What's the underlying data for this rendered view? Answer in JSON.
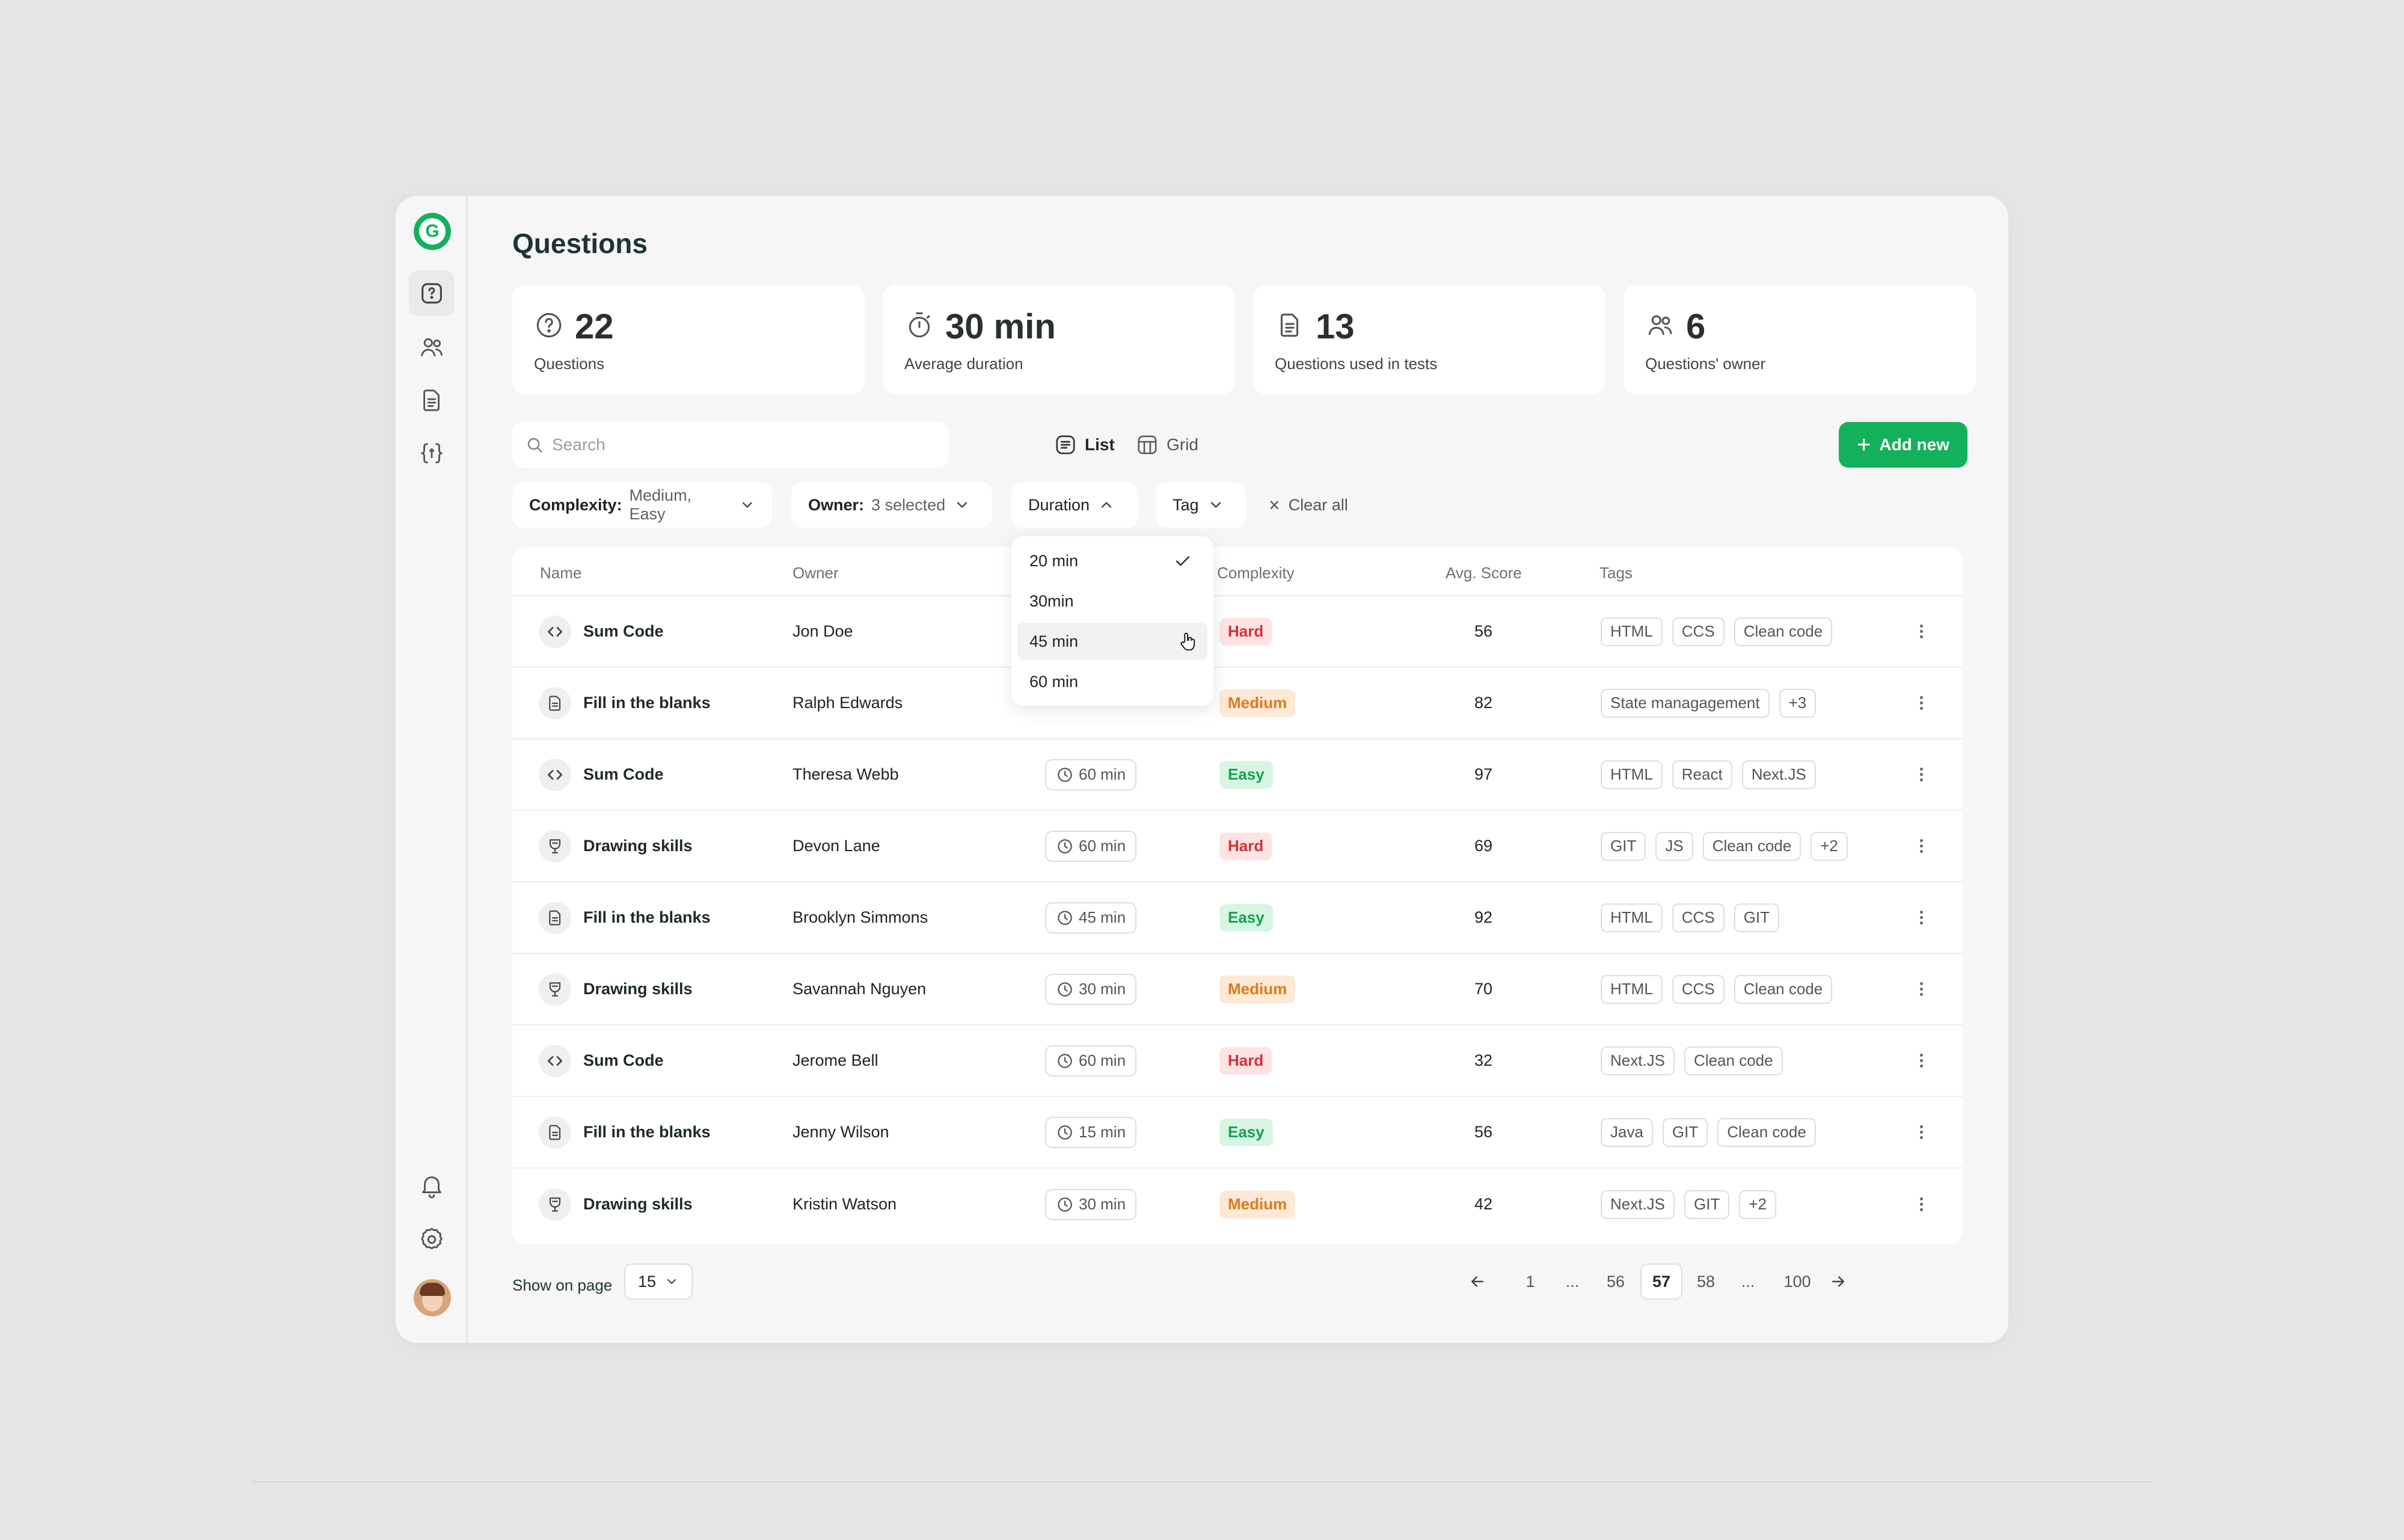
{
  "app": {
    "logo_letter": "G"
  },
  "sidebar": {
    "items": [
      {
        "name": "questions",
        "icon": "question-doc-icon",
        "active": true
      },
      {
        "name": "users",
        "icon": "users-icon",
        "active": false
      },
      {
        "name": "tests",
        "icon": "document-icon",
        "active": false
      },
      {
        "name": "code",
        "icon": "code-braces-icon",
        "active": false
      }
    ],
    "bottom": [
      "bell-icon",
      "gear-icon",
      "avatar"
    ]
  },
  "page": {
    "title": "Questions"
  },
  "stats": [
    {
      "value": "22",
      "label": "Questions",
      "icon": "question-circle-icon"
    },
    {
      "value": "30 min",
      "label": "Average duration",
      "icon": "stopwatch-icon"
    },
    {
      "value": "13",
      "label": "Questions used in tests",
      "icon": "document-icon"
    },
    {
      "value": "6",
      "label": "Questions' owner",
      "icon": "users-icon"
    }
  ],
  "search": {
    "placeholder": "Search",
    "value": ""
  },
  "view": {
    "list_label": "List",
    "grid_label": "Grid",
    "selected": "List"
  },
  "add_button": {
    "label": "Add new"
  },
  "filters": {
    "complexity": {
      "label": "Complexity:",
      "value": "Medium, Easy"
    },
    "owner": {
      "label": "Owner:",
      "value": "3 selected"
    },
    "duration": {
      "label": "Duration"
    },
    "tag": {
      "label": "Tag"
    },
    "clear_all": "Clear all"
  },
  "duration_dropdown": {
    "options": [
      "20 min",
      "30min",
      "45 min",
      "60 min"
    ],
    "selected": "20 min",
    "hovered": "45 min"
  },
  "table": {
    "headers": {
      "name": "Name",
      "owner": "Owner",
      "complexity": "Complexity",
      "score": "Avg. Score",
      "tags": "Tags"
    },
    "rows": [
      {
        "type": "code",
        "name": "Sum Code",
        "owner": "Jon Doe",
        "duration": "",
        "complexity": "Hard",
        "score": "56",
        "tags": [
          "HTML",
          "CCS",
          "Clean code"
        ]
      },
      {
        "type": "doc",
        "name": "Fill in the blanks",
        "owner": "Ralph Edwards",
        "duration": "",
        "complexity": "Medium",
        "score": "82",
        "tags": [
          "State managagement",
          "+3"
        ]
      },
      {
        "type": "code",
        "name": "Sum Code",
        "owner": "Theresa Webb",
        "duration": "60 min",
        "complexity": "Easy",
        "score": "97",
        "tags": [
          "HTML",
          "React",
          "Next.JS"
        ]
      },
      {
        "type": "draw",
        "name": "Drawing skills",
        "owner": "Devon Lane",
        "duration": "60 min",
        "complexity": "Hard",
        "score": "69",
        "tags": [
          "GIT",
          "JS",
          "Clean code",
          "+2"
        ]
      },
      {
        "type": "doc",
        "name": "Fill in the blanks",
        "owner": "Brooklyn Simmons",
        "duration": "45 min",
        "complexity": "Easy",
        "score": "92",
        "tags": [
          "HTML",
          "CCS",
          "GIT"
        ]
      },
      {
        "type": "draw",
        "name": "Drawing skills",
        "owner": "Savannah Nguyen",
        "duration": "30 min",
        "complexity": "Medium",
        "score": "70",
        "tags": [
          "HTML",
          "CCS",
          "Clean code"
        ]
      },
      {
        "type": "code",
        "name": "Sum Code",
        "owner": "Jerome Bell",
        "duration": "60 min",
        "complexity": "Hard",
        "score": "32",
        "tags": [
          "Next.JS",
          "Clean code"
        ]
      },
      {
        "type": "doc",
        "name": "Fill in the blanks",
        "owner": "Jenny Wilson",
        "duration": "15 min",
        "complexity": "Easy",
        "score": "56",
        "tags": [
          "Java",
          "GIT",
          "Clean code"
        ]
      },
      {
        "type": "draw",
        "name": "Drawing skills",
        "owner": "Kristin Watson",
        "duration": "30 min",
        "complexity": "Medium",
        "score": "42",
        "tags": [
          "Next.JS",
          "GIT",
          "+2"
        ]
      }
    ]
  },
  "footer": {
    "show_on_page_label": "Show on page",
    "per_page": "15",
    "pages": [
      "1",
      "...",
      "56",
      "57",
      "58",
      "...",
      "100"
    ],
    "current_page": "57"
  },
  "colors": {
    "accent": "#14b15c",
    "hard": "#d6303b",
    "medium": "#e07a1a",
    "easy": "#14a155"
  }
}
